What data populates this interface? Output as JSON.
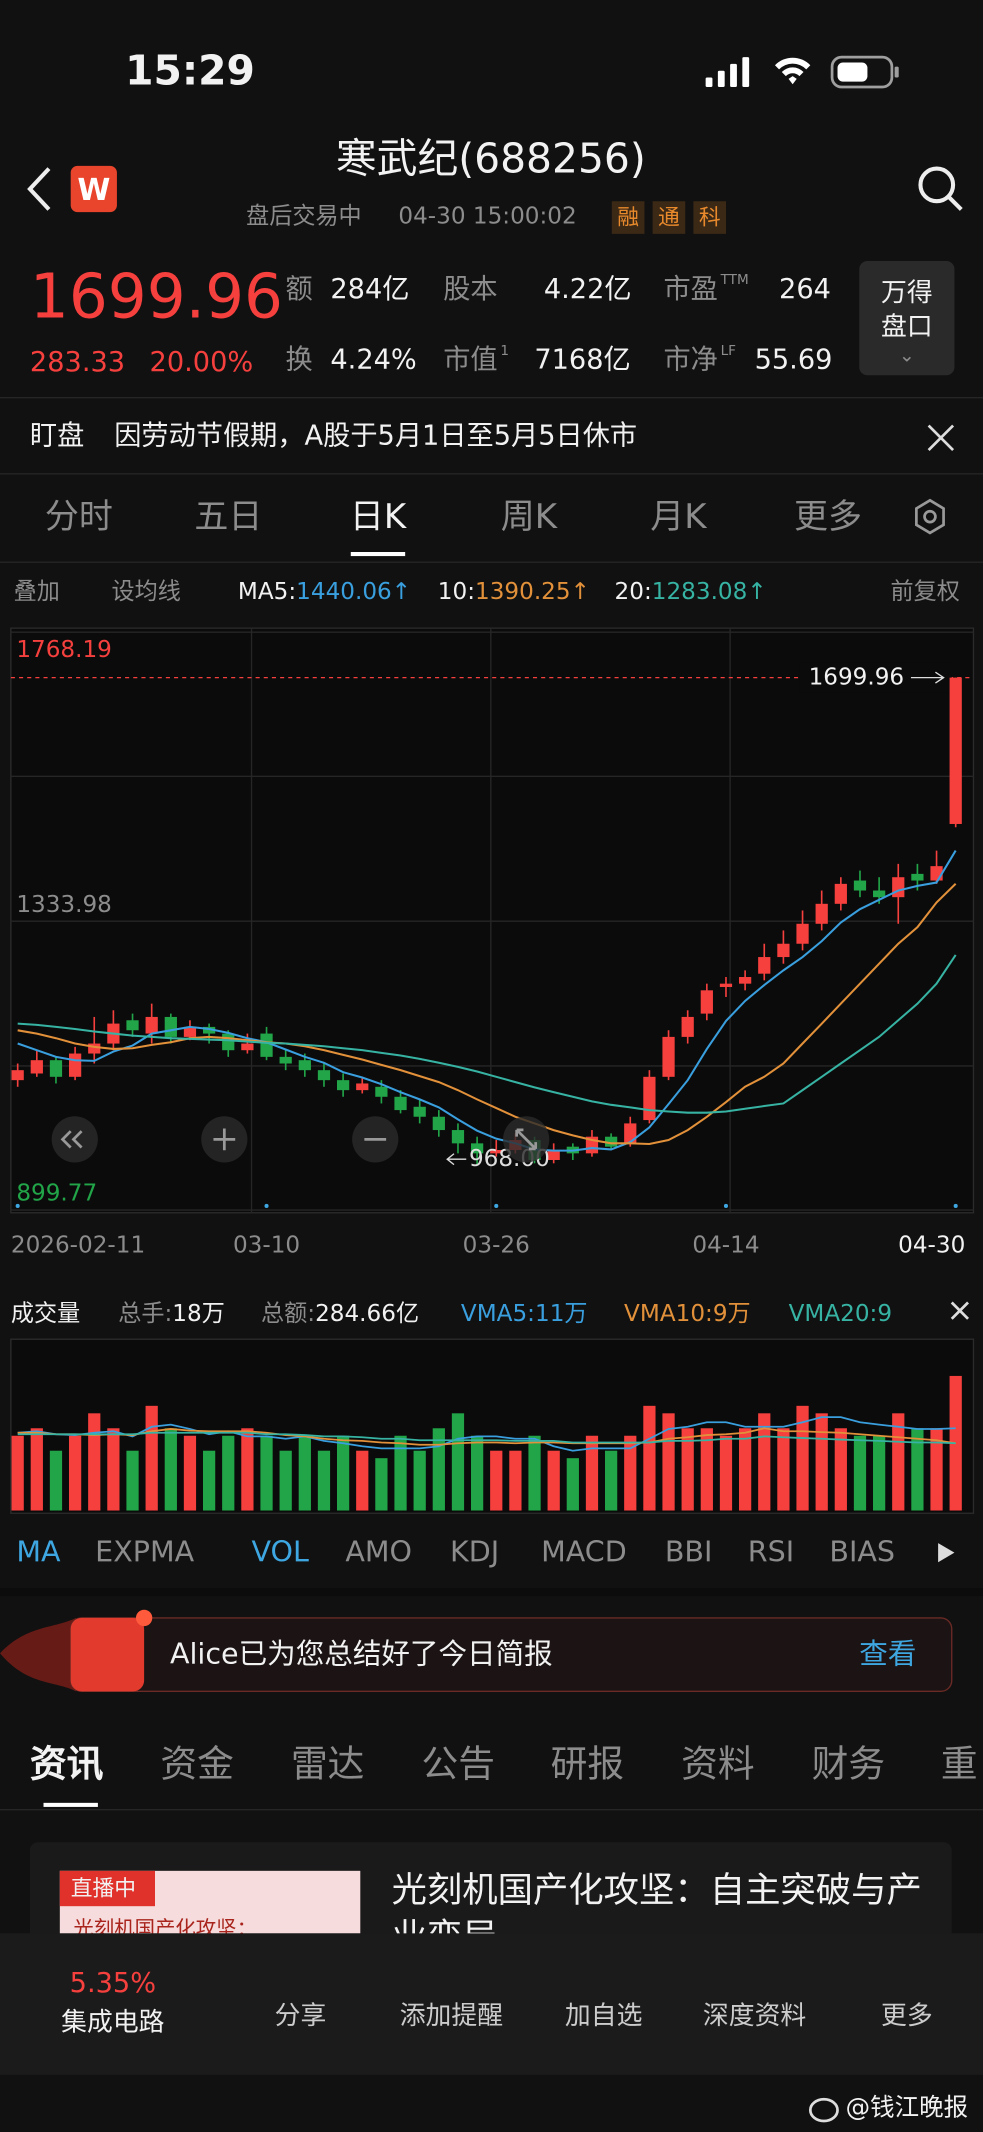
{
  "status_bar": {
    "time": "15:29"
  },
  "header": {
    "title": "寒武纪(688256)",
    "status": "盘后交易中",
    "datetime": "04-30 15:00:02",
    "tags": [
      "融",
      "通",
      "科"
    ]
  },
  "quote": {
    "price": "1699.96",
    "change": "283.33",
    "change_pct": "20.00%",
    "stats": [
      {
        "label": "额",
        "value": "284亿"
      },
      {
        "label": "股本",
        "value": "4.22亿"
      },
      {
        "label": "市盈",
        "sup": "TTM",
        "value": "264"
      },
      {
        "label": "换",
        "value": "4.24%"
      },
      {
        "label": "市值",
        "sup": "1",
        "value": "7168亿"
      },
      {
        "label": "市净",
        "sup": "LF",
        "value": "55.69"
      }
    ],
    "button": [
      "万得",
      "盘口"
    ]
  },
  "notice": {
    "tag": "盯盘",
    "text": "因劳动节假期，A股于5月1日至5月5日休市"
  },
  "tabs": [
    "分时",
    "五日",
    "日K",
    "周K",
    "月K",
    "更多"
  ],
  "toolbar": {
    "overlay": "叠加",
    "set_ma": "设均线",
    "adjust": "前复权"
  },
  "chart_data": {
    "type": "candlestick",
    "categories": [
      "2026-02-11",
      null,
      null,
      null,
      null,
      null,
      null,
      null,
      null,
      null,
      null,
      null,
      null,
      "03-10",
      null,
      null,
      null,
      null,
      null,
      null,
      null,
      null,
      null,
      null,
      null,
      "03-26",
      null,
      null,
      null,
      null,
      null,
      null,
      null,
      null,
      null,
      null,
      null,
      "04-14",
      null,
      null,
      null,
      null,
      null,
      null,
      null,
      null,
      null,
      null,
      null,
      "04-30"
    ],
    "open": [
      1095,
      1105,
      1125,
      1100,
      1135,
      1150,
      1185,
      1165,
      1190,
      1160,
      1175,
      1165,
      1140,
      1165,
      1130,
      1125,
      1110,
      1095,
      1080,
      1085,
      1070,
      1055,
      1040,
      1020,
      1000,
      985,
      990,
      1005,
      975,
      995,
      985,
      1010,
      1000,
      1035,
      1100,
      1160,
      1195,
      1235,
      1240,
      1255,
      1280,
      1300,
      1330,
      1360,
      1395,
      1380,
      1370,
      1405,
      1395,
      1480
    ],
    "high": [
      1120,
      1140,
      1130,
      1145,
      1190,
      1200,
      1195,
      1210,
      1195,
      1185,
      1180,
      1170,
      1165,
      1175,
      1140,
      1135,
      1120,
      1105,
      1100,
      1095,
      1080,
      1065,
      1050,
      1030,
      1010,
      1005,
      1015,
      1010,
      1000,
      1000,
      1020,
      1015,
      1040,
      1110,
      1170,
      1200,
      1240,
      1250,
      1260,
      1300,
      1320,
      1350,
      1380,
      1400,
      1410,
      1400,
      1420,
      1420,
      1440,
      1699.96
    ],
    "low": [
      1085,
      1100,
      1090,
      1095,
      1120,
      1140,
      1160,
      1150,
      1150,
      1155,
      1150,
      1130,
      1135,
      1125,
      1110,
      1100,
      1085,
      1070,
      1075,
      1060,
      1045,
      1030,
      1010,
      985,
      968,
      980,
      985,
      970,
      970,
      975,
      980,
      990,
      995,
      1030,
      1095,
      1150,
      1185,
      1220,
      1230,
      1245,
      1270,
      1290,
      1320,
      1350,
      1370,
      1360,
      1330,
      1380,
      1390,
      1475
    ],
    "close": [
      1110,
      1125,
      1100,
      1135,
      1150,
      1180,
      1170,
      1190,
      1160,
      1175,
      1165,
      1140,
      1150,
      1130,
      1120,
      1110,
      1095,
      1080,
      1090,
      1070,
      1050,
      1040,
      1020,
      1000,
      985,
      990,
      1005,
      975,
      990,
      985,
      1010,
      995,
      1030,
      1100,
      1160,
      1190,
      1230,
      1240,
      1250,
      1280,
      1300,
      1330,
      1360,
      1390,
      1380,
      1370,
      1400,
      1395,
      1416.63,
      1699.96
    ],
    "ylim": [
      899.77,
      1768.19
    ],
    "yticks": [
      1768.19,
      1333.98,
      899.77
    ],
    "up_color": "#f5403e",
    "down_color": "#21a548",
    "ma": [
      {
        "name": "MA5:",
        "value_label": "1440.06↑",
        "color": "#3a9fde",
        "values": [
          1150,
          1140,
          1130,
          1125,
          1124,
          1138,
          1147,
          1165,
          1170,
          1175,
          1172,
          1166,
          1158,
          1152,
          1141,
          1130,
          1121,
          1107,
          1099,
          1089,
          1077,
          1066,
          1054,
          1036,
          1019,
          1007,
          1000,
          991,
          989,
          989,
          993,
          991,
          1002,
          1024,
          1059,
          1095,
          1142,
          1184,
          1214,
          1238,
          1260,
          1280,
          1304,
          1332,
          1352,
          1366,
          1380,
          1387,
          1392,
          1440.06
        ]
      },
      {
        "name": "10:",
        "value_label": "1390.25↑",
        "color": "#e2913a",
        "values": [
          1170,
          1165,
          1158,
          1150,
          1145,
          1142,
          1143,
          1148,
          1152,
          1158,
          1160,
          1158,
          1155,
          1152,
          1150,
          1146,
          1140,
          1133,
          1126,
          1118,
          1110,
          1101,
          1092,
          1080,
          1066,
          1053,
          1040,
          1030,
          1020,
          1012,
          1005,
          1000,
          1000,
          999,
          1005,
          1020,
          1040,
          1062,
          1085,
          1100,
          1120,
          1150,
          1180,
          1210,
          1240,
          1270,
          1300,
          1325,
          1362,
          1390.25
        ]
      },
      {
        "name": "20:",
        "value_label": "1283.08↑",
        "color": "#37b3a3",
        "values": [
          1180,
          1178,
          1175,
          1172,
          1168,
          1165,
          1162,
          1160,
          1158,
          1157,
          1156,
          1155,
          1153,
          1151,
          1150,
          1148,
          1146,
          1143,
          1140,
          1136,
          1132,
          1127,
          1121,
          1115,
          1108,
          1100,
          1092,
          1084,
          1077,
          1070,
          1063,
          1058,
          1054,
          1050,
          1048,
          1046,
          1046,
          1048,
          1052,
          1056,
          1060,
          1080,
          1100,
          1120,
          1140,
          1160,
          1185,
          1210,
          1240,
          1283.08
        ]
      }
    ],
    "low_marker": {
      "value": 968,
      "label": "968.00"
    }
  },
  "volume_chart": {
    "type": "bar",
    "title": "成交量",
    "stats": [
      {
        "label": "总手:",
        "value": "18万"
      },
      {
        "label": "总额:",
        "value": "284.66亿"
      }
    ],
    "values": [
      10,
      11,
      8,
      10,
      13,
      11,
      8,
      14,
      11,
      10,
      8,
      10,
      11,
      10,
      8,
      10,
      8,
      10,
      8,
      7,
      10,
      8,
      11,
      13,
      10,
      8,
      8,
      10,
      8,
      7,
      10,
      8,
      10,
      14,
      13,
      11,
      11,
      10,
      11,
      13,
      11,
      14,
      13,
      11,
      10,
      10,
      13,
      11,
      11,
      18
    ],
    "ylim": [
      0,
      22
    ],
    "series": [
      {
        "name": "VMA5:",
        "value_label": "11万",
        "color": "#3a9fde",
        "values": [
          10.4,
          10.6,
          10.2,
          10.1,
          10.4,
          10.6,
          9.9,
          11.2,
          11.5,
          10.9,
          10.2,
          10.6,
          9.9,
          9.9,
          9.6,
          9.9,
          9.3,
          9,
          8.6,
          8.3,
          8.3,
          8.3,
          8.6,
          9.6,
          9.9,
          9.9,
          9.6,
          9.6,
          8.6,
          8,
          8.3,
          8.3,
          8.3,
          9.6,
          10.9,
          11.2,
          11.8,
          11.8,
          11.2,
          11.2,
          11.2,
          11.8,
          12.5,
          12.5,
          11.8,
          11.5,
          11.2,
          10.9,
          10.9,
          11
        ]
      },
      {
        "name": "VMA10:",
        "value_label": "9万",
        "color": "#e2913a",
        "values": [
          10.4,
          10.4,
          10.2,
          10.2,
          10.1,
          10.2,
          10.1,
          10.6,
          10.9,
          10.7,
          10.6,
          10.6,
          10.6,
          10.4,
          10.1,
          9.9,
          9.6,
          9.4,
          9.3,
          9.1,
          9,
          8.8,
          8.8,
          9,
          9.1,
          9.1,
          9,
          9.1,
          9.1,
          9,
          9,
          9,
          9,
          9.1,
          9.6,
          9.8,
          10.1,
          10.2,
          10.4,
          11,
          10.6,
          10.6,
          10.5,
          10.4,
          10.2,
          10,
          9.8,
          9.6,
          9.4,
          9
        ]
      },
      {
        "name": "VMA20:",
        "value_label": "9",
        "color": "#37b3a3",
        "values": [
          10.2,
          10.2,
          10.2,
          10.2,
          10.2,
          10.2,
          10.2,
          10.4,
          10.4,
          10.4,
          10.4,
          10.4,
          10.4,
          10.2,
          10.2,
          10.1,
          9.9,
          9.9,
          9.8,
          9.6,
          9.6,
          9.4,
          9.4,
          9.4,
          9.4,
          9.4,
          9.3,
          9.3,
          9.3,
          9.1,
          9.1,
          9.1,
          9.1,
          9.1,
          9.3,
          9.3,
          9.4,
          9.6,
          9.6,
          9.9,
          9.8,
          9.7,
          9.6,
          9.5,
          9.4,
          9.3,
          9.2,
          9.1,
          9.1,
          9
        ]
      }
    ]
  },
  "indicators": [
    "MA",
    "EXPMA",
    "VOL",
    "AMO",
    "KDJ",
    "MACD",
    "BBI",
    "RSI",
    "BIAS"
  ],
  "banner": {
    "text": "Alice已为您总结好了今日简报",
    "action": "查看"
  },
  "news_tabs": [
    "资讯",
    "资金",
    "雷达",
    "公告",
    "研报",
    "资料",
    "财务",
    "重"
  ],
  "news": [
    {
      "badge": "直播中",
      "thumb_text": "光刻机国产化攻坚：",
      "title": "光刻机国产化攻坚：自主突破与产业变局"
    }
  ],
  "bottom_bar": {
    "sector_change": "5.35%",
    "sector": "集成电路",
    "actions": [
      "分享",
      "添加提醒",
      "加自选",
      "深度资料",
      "更多"
    ]
  },
  "watermark": "@钱江晚报"
}
